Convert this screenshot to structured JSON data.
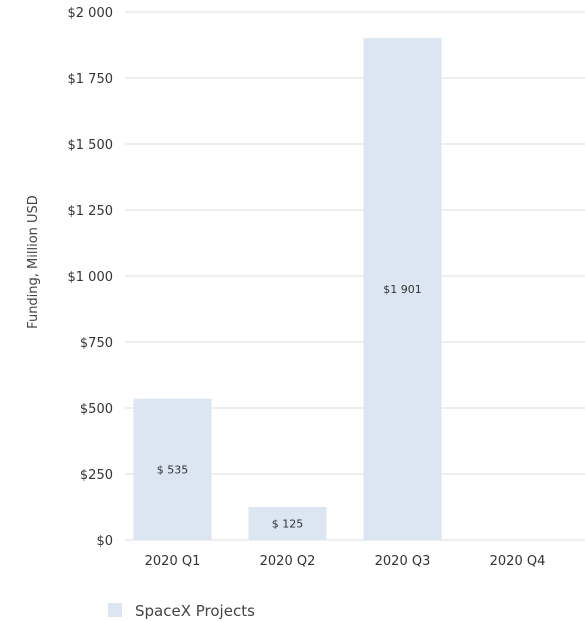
{
  "chart_data": {
    "type": "bar",
    "title": "",
    "xlabel": "",
    "ylabel": "Funding, Million USD",
    "ylim": [
      0,
      2000
    ],
    "y_ticks": [
      0,
      250,
      500,
      750,
      1000,
      1250,
      1500,
      1750,
      2000
    ],
    "y_tick_labels": [
      "$0",
      "$250",
      "$500",
      "$750",
      "$1 000",
      "$1 250",
      "$1 500",
      "$1 750",
      "$2 000"
    ],
    "categories": [
      "2020 Q1",
      "2020 Q2",
      "2020 Q3",
      "2020 Q4"
    ],
    "series": [
      {
        "name": "SpaceX Projects",
        "color": "#dce6f2",
        "values": [
          535,
          125,
          1901,
          null
        ],
        "data_labels": [
          "$ 535",
          "$ 125",
          "$1 901",
          ""
        ]
      }
    ],
    "grid": true,
    "grid_color": "#dddddd",
    "legend": "bottom-left"
  }
}
